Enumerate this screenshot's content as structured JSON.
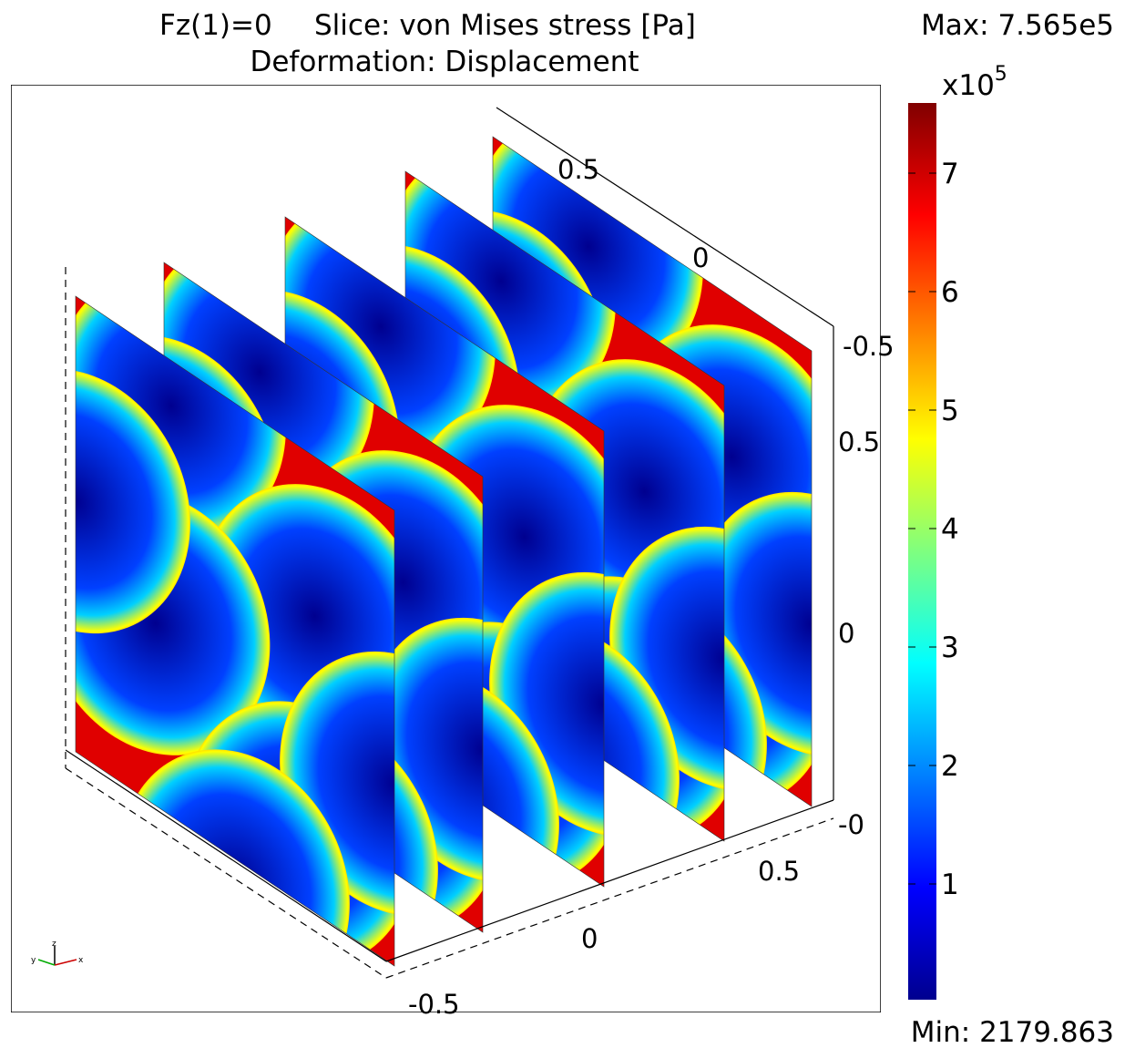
{
  "header": {
    "left": "Fz(1)=0",
    "right": "Slice: von Mises stress [Pa]",
    "subtitle": "Deformation: Displacement"
  },
  "colorbar": {
    "max_label": "Max: 7.565e5",
    "min_label": "Min: 2179.863",
    "multiplier": "x10",
    "exponent": "5",
    "ticks": [
      "1",
      "2",
      "3",
      "4",
      "5",
      "6",
      "7"
    ]
  },
  "axis_labels": {
    "top": [
      "0.5",
      "0"
    ],
    "right": [
      "-0.5",
      "0.5",
      "0",
      "-0"
    ],
    "bottom": [
      "0.5",
      "0",
      "-0.5"
    ]
  },
  "triad": [
    "y",
    "z",
    "x"
  ]
}
